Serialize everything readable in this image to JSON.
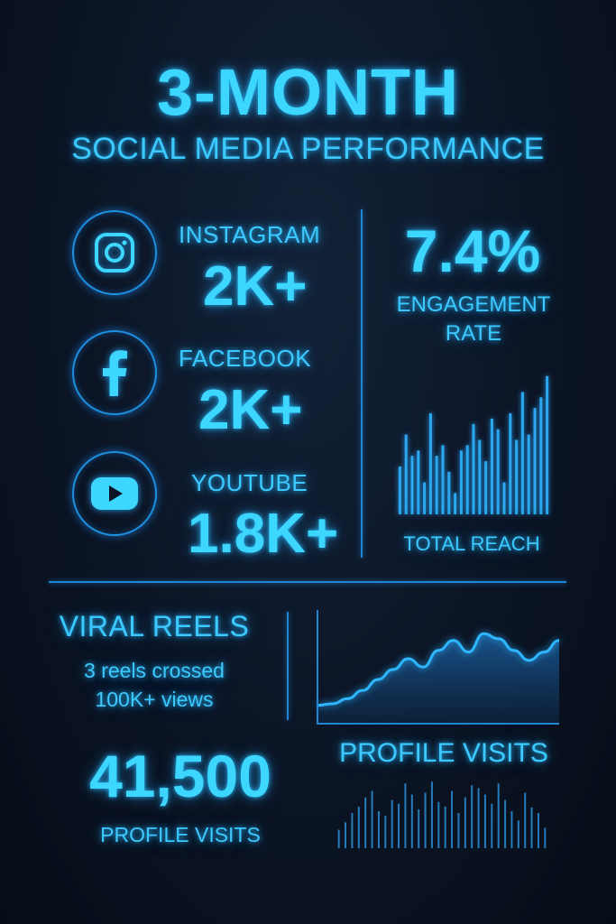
{
  "header": {
    "title": "3-MONTH",
    "subtitle": "SOCIAL MEDIA PERFORMANCE"
  },
  "platforms": [
    {
      "name": "INSTAGRAM",
      "value": "2K+",
      "icon": "instagram-icon"
    },
    {
      "name": "FACEBOOK",
      "value": "2K+",
      "icon": "facebook-icon"
    },
    {
      "name": "YOUTUBE",
      "value": "1.8K+",
      "icon": "youtube-icon"
    }
  ],
  "engagement": {
    "value": "7.4%",
    "label_line1": "ENGAGEMENT",
    "label_line2": "RATE"
  },
  "reach": {
    "label": "TOTAL REACH"
  },
  "viral": {
    "title": "VIRAL REELS",
    "line1": "3 reels crossed",
    "line2": "100K+ views"
  },
  "visits": {
    "value": "41,500",
    "label": "PROFILE VISITS",
    "chart_title": "PROFILE VISITS"
  },
  "colors": {
    "accent": "#3cd6ff",
    "line": "#1f86d6",
    "background": "#0b1424"
  },
  "chart_data": [
    {
      "type": "bar",
      "title": "TOTAL REACH",
      "values": [
        45,
        75,
        55,
        60,
        30,
        95,
        55,
        65,
        40,
        20,
        60,
        65,
        85,
        70,
        50,
        90,
        80,
        30,
        95,
        70,
        115,
        75,
        100,
        110,
        130
      ],
      "ylim": [
        0,
        140
      ]
    },
    {
      "type": "area",
      "title": "",
      "x": [
        0,
        1,
        2,
        3,
        4,
        5,
        6,
        7,
        8,
        9,
        10,
        11,
        12,
        13,
        14,
        15,
        16
      ],
      "values": [
        22,
        24,
        30,
        40,
        53,
        65,
        78,
        68,
        88,
        100,
        86,
        108,
        102,
        88,
        76,
        86,
        100
      ],
      "ylim": [
        0,
        130
      ]
    },
    {
      "type": "bar",
      "title": "PROFILE VISITS",
      "values": [
        20,
        28,
        38,
        45,
        55,
        62,
        40,
        35,
        52,
        48,
        70,
        58,
        42,
        60,
        72,
        50,
        45,
        62,
        38,
        55,
        68,
        65,
        58,
        48,
        70,
        52,
        40,
        30,
        60,
        44,
        38,
        22
      ],
      "ylim": [
        0,
        80
      ]
    }
  ]
}
